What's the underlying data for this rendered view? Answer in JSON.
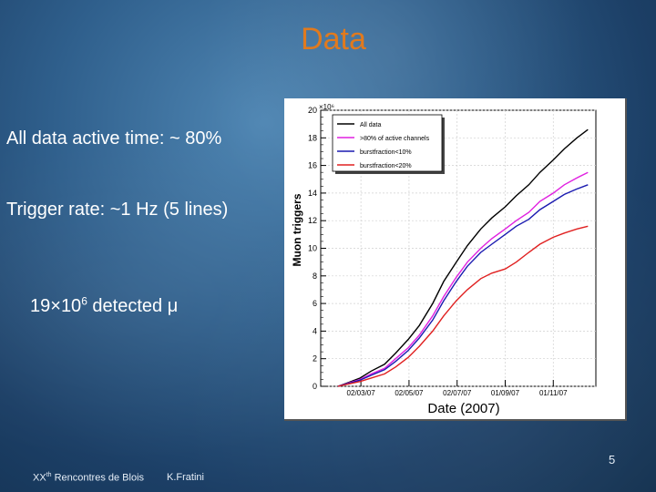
{
  "slide": {
    "title": "Data",
    "bullets": {
      "active_time": "All data active time: ~ 80%",
      "trigger_rate": "Trigger rate: ~1 Hz (5 lines)",
      "detected_prefix": "19",
      "detected_times": "×",
      "detected_base": "10",
      "detected_exp": "6",
      "detected_suffix": " detected ",
      "detected_mu": "μ"
    },
    "footer": {
      "conference_prefix": "XX",
      "conference_sup": "th",
      "conference_suffix": " Rencontres de Blois",
      "author": "K.Fratini"
    },
    "page_number": "5"
  },
  "chart_data": {
    "type": "line",
    "title": "",
    "xlabel": "Date (2007)",
    "ylabel": "Muon triggers",
    "y_multiplier": "×10⁶",
    "x_date_range": [
      "2007-01-10",
      "2007-12-25"
    ],
    "ylim": [
      0,
      20
    ],
    "y_ticks": [
      0,
      2,
      4,
      6,
      8,
      10,
      12,
      14,
      16,
      18,
      20
    ],
    "x_tick_labels": [
      {
        "date": "2007-03-02",
        "label": "02/03/07"
      },
      {
        "date": "2007-05-02",
        "label": "02/05/07"
      },
      {
        "date": "2007-07-02",
        "label": "02/07/07"
      },
      {
        "date": "2007-09-01",
        "label": "01/09/07"
      },
      {
        "date": "2007-11-01",
        "label": "01/11/07"
      }
    ],
    "grid": true,
    "legend_position": "top-left",
    "series": [
      {
        "name": "All data",
        "color": "#000000",
        "x": [
          "2007-02-01",
          "2007-02-15",
          "2007-03-01",
          "2007-03-15",
          "2007-04-01",
          "2007-04-15",
          "2007-05-01",
          "2007-05-15",
          "2007-06-01",
          "2007-06-15",
          "2007-07-01",
          "2007-07-15",
          "2007-08-01",
          "2007-08-15",
          "2007-09-01",
          "2007-09-15",
          "2007-10-01",
          "2007-10-15",
          "2007-11-01",
          "2007-11-15",
          "2007-12-01",
          "2007-12-15"
        ],
        "y": [
          0.0,
          0.3,
          0.6,
          1.1,
          1.6,
          2.4,
          3.4,
          4.4,
          6.0,
          7.6,
          9.0,
          10.2,
          11.4,
          12.2,
          13.0,
          13.8,
          14.6,
          15.5,
          16.4,
          17.2,
          18.0,
          18.6
        ]
      },
      {
        "name": ">80% of active channels",
        "color": "#e020e0",
        "x": [
          "2007-02-01",
          "2007-02-15",
          "2007-03-01",
          "2007-03-15",
          "2007-04-01",
          "2007-04-15",
          "2007-05-01",
          "2007-05-15",
          "2007-06-01",
          "2007-06-15",
          "2007-07-01",
          "2007-07-15",
          "2007-08-01",
          "2007-08-15",
          "2007-09-01",
          "2007-09-15",
          "2007-10-01",
          "2007-10-15",
          "2007-11-01",
          "2007-11-15",
          "2007-12-01",
          "2007-12-15"
        ],
        "y": [
          0.0,
          0.25,
          0.5,
          0.9,
          1.3,
          2.0,
          2.8,
          3.7,
          5.1,
          6.5,
          7.9,
          9.0,
          10.0,
          10.7,
          11.4,
          12.0,
          12.6,
          13.4,
          14.0,
          14.6,
          15.1,
          15.5
        ]
      },
      {
        "name": "burstfraction<10%",
        "color": "#1a1ab0",
        "x": [
          "2007-02-01",
          "2007-02-15",
          "2007-03-01",
          "2007-03-15",
          "2007-04-01",
          "2007-04-15",
          "2007-05-01",
          "2007-05-15",
          "2007-06-01",
          "2007-06-15",
          "2007-07-01",
          "2007-07-15",
          "2007-08-01",
          "2007-08-15",
          "2007-09-01",
          "2007-09-15",
          "2007-10-01",
          "2007-10-15",
          "2007-11-01",
          "2007-11-15",
          "2007-12-01",
          "2007-12-15"
        ],
        "y": [
          0.0,
          0.22,
          0.45,
          0.8,
          1.2,
          1.8,
          2.6,
          3.5,
          4.8,
          6.2,
          7.6,
          8.7,
          9.7,
          10.3,
          11.0,
          11.6,
          12.1,
          12.8,
          13.4,
          13.9,
          14.3,
          14.6
        ]
      },
      {
        "name": "burstfraction<20%",
        "color": "#e02020",
        "x": [
          "2007-02-01",
          "2007-02-15",
          "2007-03-01",
          "2007-03-15",
          "2007-04-01",
          "2007-04-15",
          "2007-05-01",
          "2007-05-15",
          "2007-06-01",
          "2007-06-15",
          "2007-07-01",
          "2007-07-15",
          "2007-08-01",
          "2007-08-15",
          "2007-09-01",
          "2007-09-15",
          "2007-10-01",
          "2007-10-15",
          "2007-11-01",
          "2007-11-15",
          "2007-12-01",
          "2007-12-15"
        ],
        "y": [
          0.0,
          0.18,
          0.35,
          0.6,
          0.9,
          1.4,
          2.1,
          2.9,
          4.0,
          5.1,
          6.2,
          7.0,
          7.8,
          8.2,
          8.5,
          9.0,
          9.7,
          10.3,
          10.8,
          11.1,
          11.4,
          11.6
        ]
      }
    ]
  }
}
